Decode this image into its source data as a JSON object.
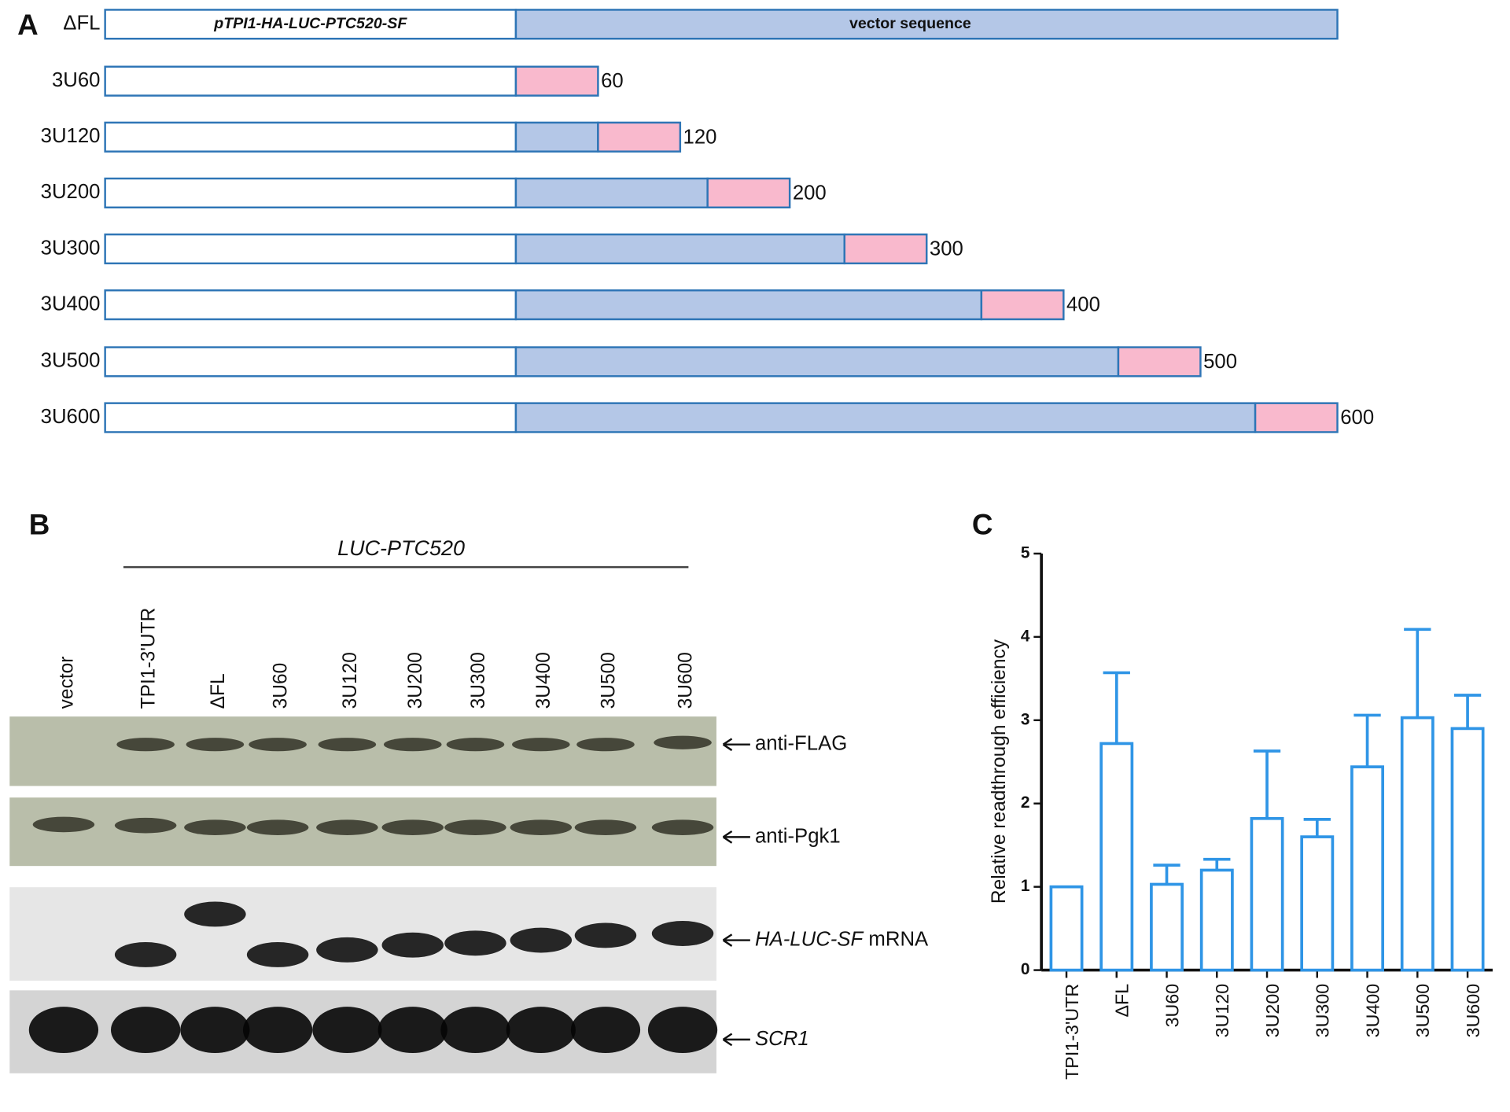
{
  "panel_a": {
    "label": "A",
    "rows": [
      {
        "name": "ΔFL",
        "insert": "pTPI1-HA-LUC-PTC520-SF",
        "vector": "vector sequence"
      },
      {
        "name": "3U60",
        "length": 60
      },
      {
        "name": "3U120",
        "length": 120
      },
      {
        "name": "3U200",
        "length": 200
      },
      {
        "name": "3U300",
        "length": 300
      },
      {
        "name": "3U400",
        "length": 400
      },
      {
        "name": "3U500",
        "length": 500
      },
      {
        "name": "3U600",
        "length": 600
      }
    ]
  },
  "panel_b": {
    "label": "B",
    "group": "LUC-PTC520",
    "lanes": [
      "vector",
      "TPI1-3'UTR",
      "ΔFL",
      "3U60",
      "3U120",
      "3U200",
      "3U300",
      "3U400",
      "3U500",
      "3U600"
    ],
    "blots": [
      {
        "label": "anti-FLAG"
      },
      {
        "label": "anti-Pgk1"
      },
      {
        "label_italic": "HA-LUC-SF",
        "label": "mRNA"
      },
      {
        "label_italic": "SCR1"
      }
    ]
  },
  "chart_data": {
    "type": "bar",
    "label": "C",
    "y_label": "Relative readthrough efficiency",
    "categories": [
      "TPI1-3'UTR",
      "ΔFL",
      "3U60",
      "3U120",
      "3U200",
      "3U300",
      "3U400",
      "3U500",
      "3U600"
    ],
    "values": [
      1.0,
      2.72,
      1.03,
      1.2,
      1.82,
      1.6,
      2.44,
      3.03,
      2.9
    ],
    "errors": [
      null,
      0.85,
      0.23,
      0.13,
      0.81,
      0.21,
      0.62,
      1.06,
      0.4
    ],
    "color": "#2f95e6",
    "ylim": [
      0,
      5
    ],
    "yticks": [
      0,
      1,
      2,
      3,
      4,
      5
    ]
  }
}
